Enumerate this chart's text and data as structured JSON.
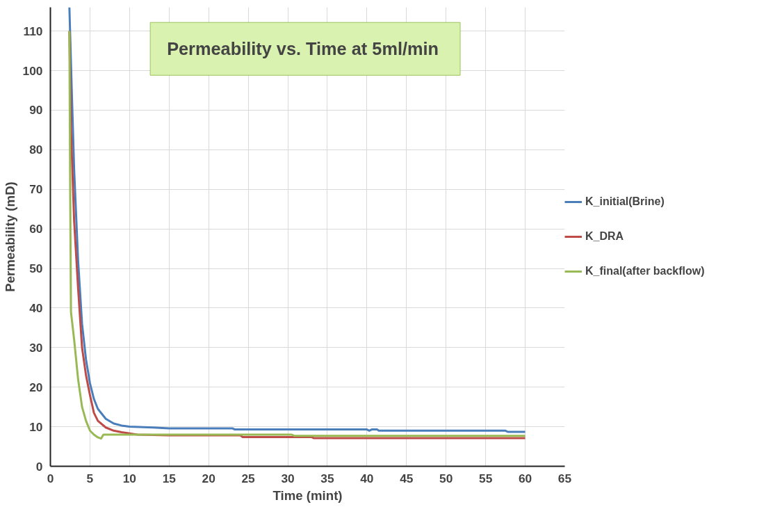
{
  "chart_data": {
    "type": "line",
    "title": "Permeability vs. Time at  5ml/min",
    "xlabel": "Time (mint)",
    "ylabel": "Permeability (mD)",
    "xlim": [
      0,
      65
    ],
    "xticks": [
      0,
      5,
      10,
      15,
      20,
      25,
      30,
      35,
      40,
      45,
      50,
      55,
      60,
      65
    ],
    "ylim": [
      0,
      116
    ],
    "yticks": [
      0,
      10,
      20,
      30,
      40,
      50,
      60,
      70,
      80,
      90,
      100,
      110
    ],
    "grid": true,
    "legend": "right",
    "marker": "none",
    "line_style": "solid",
    "series": [
      {
        "name": "K_initial(Brine)",
        "color": "#4a7ebb",
        "x": [
          2.4,
          2.7,
          3.0,
          3.5,
          4,
          4.5,
          5,
          5.5,
          6,
          7,
          8,
          9,
          10,
          13,
          15,
          23,
          23.3,
          40,
          40.3,
          40.6,
          41.3,
          41.5,
          57.5,
          57.8,
          60
        ],
        "values": [
          116,
          95,
          75,
          52,
          36,
          27,
          21,
          17,
          14.5,
          12,
          10.8,
          10.3,
          10,
          9.8,
          9.6,
          9.6,
          9.3,
          9.3,
          9.0,
          9.3,
          9.3,
          9.0,
          9.0,
          8.7,
          8.7
        ]
      },
      {
        "name": "K_DRA",
        "color": "#be4b48",
        "x": [
          2.4,
          2.6,
          3.0,
          3.5,
          4,
          4.5,
          5,
          5.5,
          6,
          7,
          8,
          9,
          10,
          11,
          15,
          24,
          24.3,
          33,
          33.3,
          60
        ],
        "values": [
          110,
          85,
          62,
          45,
          30,
          23,
          18,
          13.5,
          11.5,
          9.8,
          9,
          8.6,
          8.3,
          8.0,
          7.8,
          7.8,
          7.4,
          7.4,
          7.1,
          7.1
        ]
      },
      {
        "name": "K_final(after backflow)",
        "color": "#98b954",
        "x": [
          2.4,
          2.5,
          2.6,
          3,
          3.5,
          4,
          4.5,
          5,
          5.5,
          6,
          6.4,
          6.7,
          30.5,
          30.8,
          60
        ],
        "values": [
          110,
          70,
          39,
          32,
          22,
          15,
          11.5,
          9,
          8,
          7.3,
          7.0,
          8.0,
          8.0,
          7.7,
          7.7
        ]
      }
    ]
  }
}
